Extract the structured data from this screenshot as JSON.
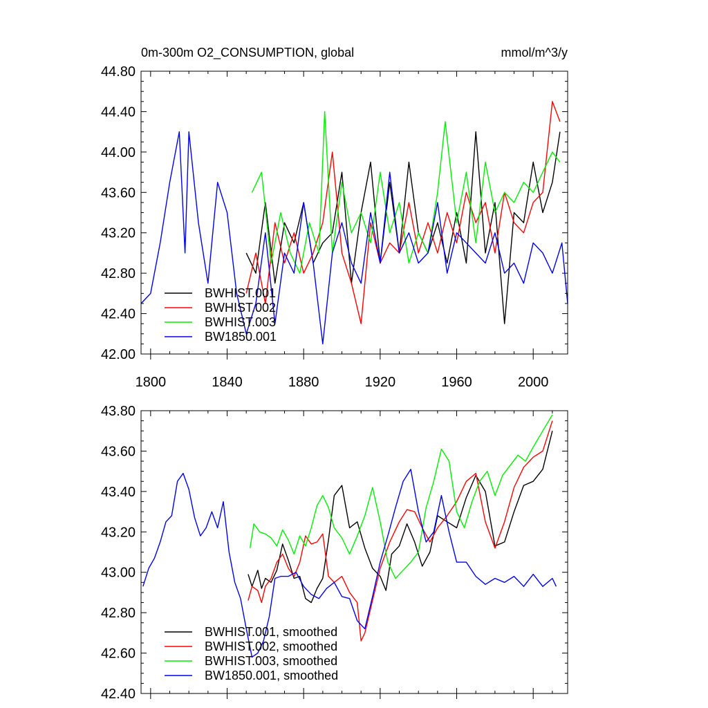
{
  "chart_data": [
    {
      "type": "line",
      "title_left": "0m-300m O2_CONSUMPTION, global",
      "title_right": "mmol/m^3/y",
      "xlim": [
        1795,
        2018
      ],
      "ylim": [
        42.0,
        44.8
      ],
      "x_ticks": [
        1800,
        1840,
        1880,
        1920,
        1960,
        2000
      ],
      "x_tick_labels": [
        "1800",
        "1840",
        "1880",
        "1920",
        "1960",
        "2000"
      ],
      "y_ticks": [
        42.0,
        42.4,
        42.8,
        43.2,
        43.6,
        44.0,
        44.4,
        44.8
      ],
      "y_tick_labels": [
        "42.00",
        "42.40",
        "42.80",
        "43.20",
        "43.60",
        "44.00",
        "44.40",
        "44.80"
      ],
      "legend_position": "bottom-left",
      "series": [
        {
          "name": "BWHIST.001",
          "color": "#000000",
          "x": [
            1850,
            1855,
            1860,
            1865,
            1870,
            1875,
            1880,
            1885,
            1890,
            1895,
            1900,
            1905,
            1910,
            1915,
            1920,
            1925,
            1930,
            1935,
            1940,
            1945,
            1950,
            1955,
            1960,
            1965,
            1970,
            1975,
            1980,
            1985,
            1990,
            1995,
            2000,
            2005,
            2010,
            2014
          ],
          "y": [
            43.0,
            42.8,
            43.5,
            42.7,
            43.3,
            43.1,
            43.5,
            42.9,
            43.1,
            43.2,
            43.8,
            42.7,
            43.4,
            43.9,
            42.9,
            43.7,
            43.0,
            43.9,
            43.2,
            43.0,
            43.3,
            42.9,
            43.4,
            42.9,
            44.2,
            43.0,
            43.5,
            42.3,
            43.4,
            43.3,
            43.9,
            43.4,
            43.7,
            44.2
          ]
        },
        {
          "name": "BWHIST.002",
          "color": "#ff0000",
          "x": [
            1850,
            1855,
            1860,
            1865,
            1870,
            1875,
            1880,
            1885,
            1890,
            1895,
            1900,
            1905,
            1910,
            1915,
            1920,
            1925,
            1930,
            1935,
            1940,
            1945,
            1950,
            1955,
            1960,
            1965,
            1970,
            1975,
            1980,
            1985,
            1990,
            1995,
            2000,
            2005,
            2010,
            2014
          ],
          "y": [
            42.6,
            43.0,
            42.5,
            43.3,
            42.9,
            43.2,
            42.8,
            43.0,
            43.3,
            44.0,
            43.0,
            42.7,
            42.3,
            43.3,
            42.9,
            43.1,
            43.0,
            43.5,
            43.0,
            43.3,
            43.0,
            43.4,
            43.1,
            43.6,
            43.3,
            43.5,
            43.0,
            43.6,
            43.3,
            43.2,
            43.5,
            43.6,
            44.5,
            44.3
          ]
        },
        {
          "name": "BWHIST.003",
          "color": "#00ee00",
          "x": [
            1853,
            1858,
            1863,
            1868,
            1873,
            1878,
            1883,
            1888,
            1891,
            1895,
            1900,
            1905,
            1910,
            1915,
            1920,
            1925,
            1930,
            1935,
            1940,
            1945,
            1950,
            1954,
            1960,
            1965,
            1970,
            1975,
            1980,
            1985,
            1990,
            1995,
            2000,
            2005,
            2010,
            2014
          ],
          "y": [
            43.6,
            43.8,
            42.9,
            43.4,
            43.0,
            42.8,
            43.3,
            43.0,
            44.4,
            43.0,
            43.7,
            43.2,
            43.4,
            43.1,
            43.8,
            43.2,
            43.5,
            42.9,
            43.2,
            43.0,
            43.6,
            44.3,
            43.3,
            43.8,
            43.1,
            43.9,
            43.4,
            43.6,
            43.5,
            43.7,
            43.6,
            43.8,
            44.0,
            43.9
          ]
        },
        {
          "name": "BW1850.001",
          "color": "#0000ee",
          "x": [
            1795,
            1800,
            1805,
            1810,
            1815,
            1818,
            1820,
            1825,
            1830,
            1835,
            1840,
            1845,
            1850,
            1855,
            1860,
            1865,
            1870,
            1875,
            1880,
            1885,
            1890,
            1895,
            1900,
            1905,
            1910,
            1915,
            1920,
            1925,
            1930,
            1935,
            1940,
            1945,
            1950,
            1955,
            1960,
            1965,
            1970,
            1975,
            1980,
            1985,
            1990,
            1995,
            2000,
            2005,
            2010,
            2015,
            2018
          ],
          "y": [
            42.5,
            42.6,
            43.1,
            43.7,
            44.2,
            43.0,
            44.2,
            43.3,
            42.7,
            43.7,
            43.4,
            42.6,
            42.2,
            42.5,
            43.2,
            42.3,
            43.0,
            42.8,
            43.5,
            42.9,
            42.1,
            43.0,
            43.3,
            42.9,
            42.7,
            43.4,
            42.9,
            43.8,
            43.0,
            43.2,
            42.9,
            43.0,
            43.5,
            42.8,
            43.2,
            43.1,
            43.0,
            42.9,
            43.2,
            42.8,
            42.9,
            42.7,
            43.1,
            43.0,
            42.8,
            43.1,
            42.5
          ]
        }
      ]
    },
    {
      "type": "line",
      "title_left": "",
      "title_right": "",
      "xlim": [
        1795,
        2018
      ],
      "ylim": [
        42.4,
        43.8
      ],
      "x_ticks": [
        1800,
        1840,
        1880,
        1920,
        1960,
        2000
      ],
      "x_tick_labels": [
        "",
        "",
        "",
        "",
        "",
        ""
      ],
      "y_ticks": [
        42.4,
        42.6,
        42.8,
        43.0,
        43.2,
        43.4,
        43.6,
        43.8
      ],
      "y_tick_labels": [
        "42.40",
        "42.60",
        "42.80",
        "43.00",
        "43.20",
        "43.40",
        "43.60",
        "43.80"
      ],
      "legend_position": "bottom-left",
      "series": [
        {
          "name": "BWHIST.001, smoothed",
          "color": "#000000",
          "x": [
            1851,
            1853,
            1856,
            1858,
            1860,
            1863,
            1866,
            1869,
            1872,
            1875,
            1878,
            1881,
            1884,
            1887,
            1890,
            1893,
            1896,
            1900,
            1904,
            1908,
            1912,
            1916,
            1920,
            1923,
            1926,
            1930,
            1934,
            1938,
            1942,
            1946,
            1950,
            1955,
            1960,
            1965,
            1970,
            1975,
            1980,
            1985,
            1990,
            1995,
            2000,
            2005,
            2010
          ],
          "y": [
            42.99,
            42.93,
            43.01,
            42.92,
            42.97,
            42.95,
            43.01,
            43.14,
            43.06,
            42.97,
            42.98,
            42.87,
            42.85,
            42.92,
            42.97,
            43.16,
            43.38,
            43.43,
            43.22,
            43.25,
            43.12,
            43.02,
            42.98,
            42.91,
            43.09,
            43.13,
            43.24,
            43.15,
            43.03,
            43.1,
            43.28,
            43.25,
            43.22,
            43.37,
            43.48,
            43.4,
            43.13,
            43.15,
            43.3,
            43.43,
            43.45,
            43.51,
            43.7
          ]
        },
        {
          "name": "BWHIST.002, smoothed",
          "color": "#ff0000",
          "x": [
            1851,
            1853,
            1856,
            1858,
            1860,
            1863,
            1866,
            1869,
            1872,
            1875,
            1878,
            1881,
            1884,
            1887,
            1890,
            1893,
            1896,
            1900,
            1904,
            1908,
            1910,
            1912,
            1916,
            1920,
            1925,
            1930,
            1934,
            1938,
            1942,
            1946,
            1950,
            1955,
            1960,
            1965,
            1970,
            1975,
            1980,
            1985,
            1990,
            1995,
            2000,
            2005,
            2010
          ],
          "y": [
            42.86,
            42.93,
            42.91,
            42.85,
            42.93,
            42.97,
            43.05,
            43.09,
            43.02,
            42.98,
            43.05,
            43.18,
            43.14,
            43.15,
            43.19,
            42.98,
            42.95,
            42.98,
            42.9,
            42.85,
            42.66,
            42.7,
            42.86,
            43.02,
            43.15,
            43.25,
            43.31,
            43.3,
            43.22,
            43.15,
            43.22,
            43.28,
            43.35,
            43.45,
            43.49,
            43.25,
            43.12,
            43.25,
            43.42,
            43.52,
            43.57,
            43.6,
            43.75
          ]
        },
        {
          "name": "BWHIST.003, smoothed",
          "color": "#00ee00",
          "x": [
            1852,
            1854,
            1857,
            1860,
            1863,
            1866,
            1869,
            1872,
            1875,
            1878,
            1881,
            1884,
            1887,
            1890,
            1893,
            1896,
            1900,
            1904,
            1908,
            1912,
            1916,
            1920,
            1924,
            1928,
            1932,
            1936,
            1940,
            1944,
            1948,
            1952,
            1956,
            1960,
            1964,
            1968,
            1972,
            1976,
            1980,
            1984,
            1988,
            1992,
            1996,
            2000,
            2005,
            2010
          ],
          "y": [
            43.12,
            43.24,
            43.2,
            43.19,
            43.17,
            43.13,
            43.21,
            43.16,
            43.09,
            43.18,
            43.13,
            43.22,
            43.33,
            43.38,
            43.32,
            43.22,
            43.17,
            43.09,
            43.18,
            43.28,
            43.42,
            43.25,
            43.05,
            42.97,
            43.01,
            43.05,
            43.1,
            43.32,
            43.45,
            43.61,
            43.55,
            43.3,
            43.22,
            43.35,
            43.45,
            43.5,
            43.38,
            43.48,
            43.53,
            43.58,
            43.55,
            43.62,
            43.7,
            43.78
          ]
        },
        {
          "name": "BW1850.001, smoothed",
          "color": "#0000ee",
          "x": [
            1796,
            1799,
            1802,
            1805,
            1808,
            1811,
            1814,
            1817,
            1820,
            1823,
            1826,
            1829,
            1832,
            1835,
            1838,
            1841,
            1844,
            1847,
            1850,
            1853,
            1856,
            1859,
            1862,
            1865,
            1868,
            1872,
            1876,
            1880,
            1884,
            1888,
            1892,
            1896,
            1900,
            1904,
            1908,
            1912,
            1916,
            1920,
            1924,
            1928,
            1932,
            1936,
            1940,
            1944,
            1948,
            1952,
            1956,
            1960,
            1965,
            1970,
            1975,
            1980,
            1985,
            1990,
            1995,
            2000,
            2005,
            2010,
            2012
          ],
          "y": [
            42.93,
            43.02,
            43.07,
            43.15,
            43.25,
            43.28,
            43.45,
            43.49,
            43.41,
            43.27,
            43.18,
            43.22,
            43.3,
            43.22,
            43.35,
            43.1,
            42.95,
            42.87,
            42.72,
            42.58,
            42.6,
            42.66,
            42.78,
            42.97,
            42.98,
            42.98,
            43.0,
            42.93,
            42.89,
            42.87,
            42.92,
            42.95,
            42.88,
            42.87,
            42.76,
            42.72,
            42.88,
            43.05,
            43.18,
            43.32,
            43.45,
            43.51,
            43.3,
            43.15,
            43.2,
            43.38,
            43.2,
            43.05,
            43.05,
            42.98,
            42.94,
            42.97,
            42.95,
            42.98,
            42.93,
            42.99,
            42.93,
            42.97,
            42.93
          ]
        }
      ]
    }
  ]
}
